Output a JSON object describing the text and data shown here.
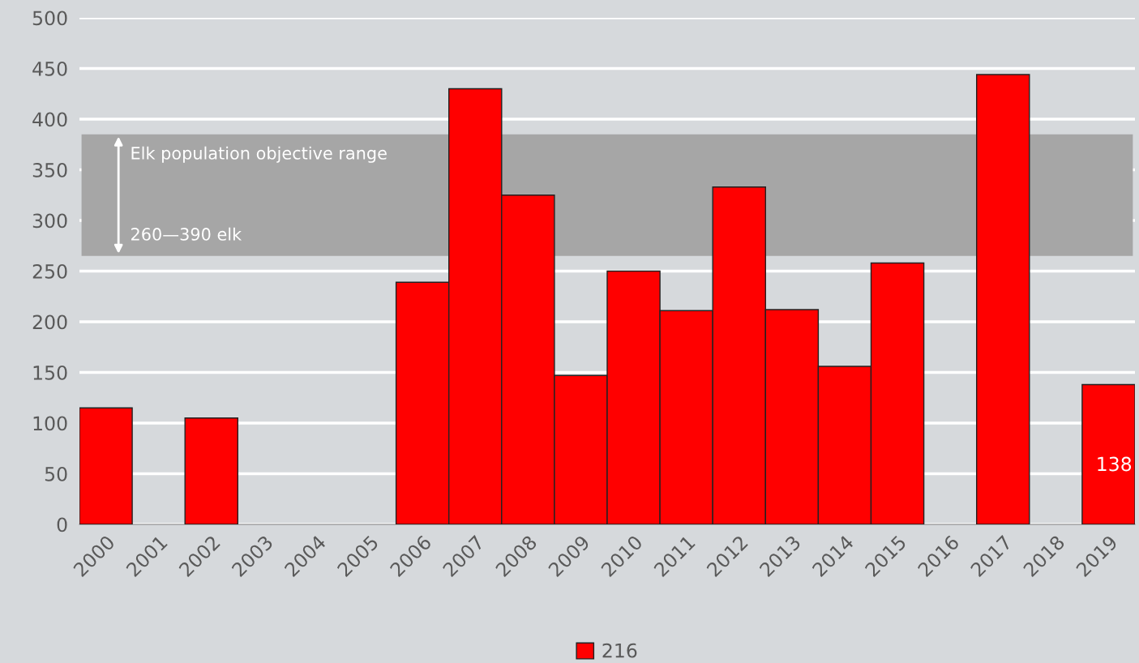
{
  "chart_data": {
    "type": "bar",
    "categories": [
      "2000",
      "2001",
      "2002",
      "2003",
      "2004",
      "2005",
      "2006",
      "2007",
      "2008",
      "2009",
      "2010",
      "2011",
      "2012",
      "2013",
      "2014",
      "2015",
      "2016",
      "2017",
      "2018",
      "2019"
    ],
    "series": [
      {
        "name": "216",
        "color": "#ff0000",
        "values": [
          115,
          null,
          105,
          null,
          null,
          null,
          239,
          430,
          325,
          147,
          250,
          211,
          333,
          212,
          156,
          258,
          null,
          444,
          null,
          138
        ],
        "value_labels": [
          null,
          null,
          null,
          null,
          null,
          null,
          null,
          null,
          null,
          null,
          null,
          null,
          null,
          null,
          null,
          null,
          null,
          null,
          null,
          "138"
        ]
      }
    ],
    "ylim": [
      0,
      500
    ],
    "yticks": [
      0,
      50,
      100,
      150,
      200,
      250,
      300,
      350,
      400,
      450,
      500
    ],
    "grid": "y",
    "legend": "bottom",
    "bands": [
      {
        "axis": "y",
        "from": 265,
        "to": 385,
        "color": "#a6a6a6"
      }
    ],
    "annotations": [
      {
        "text": "Elk population objective range",
        "y": 385
      },
      {
        "text": "260—390 elk",
        "y": 265
      }
    ]
  }
}
